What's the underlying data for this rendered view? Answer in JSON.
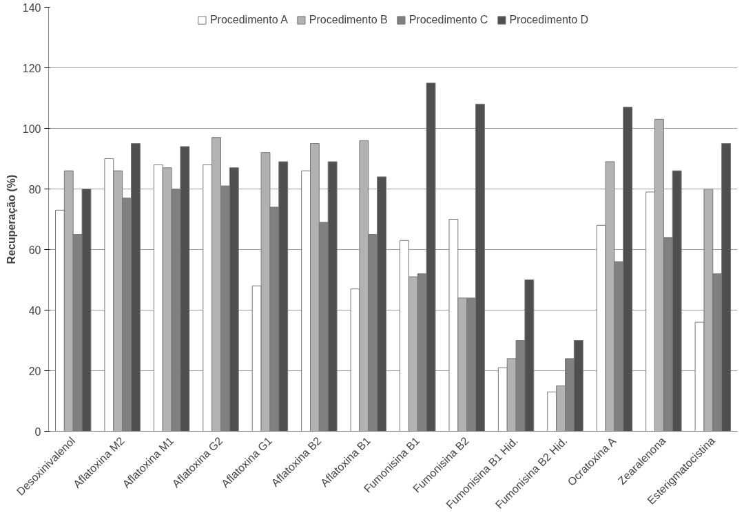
{
  "chart_data": {
    "type": "bar",
    "ylabel": "Recuperação (%)",
    "categories": [
      "Desoxinivalenol",
      "Aflatoxina M2",
      "Aflatoxina M1",
      "Aflatoxina G2",
      "Aflatoxina G1",
      "Aflatoxina B2",
      "Aflatoxina B1",
      "Fumonisina B1",
      "Fumonisina B2",
      "Fumonisina B1 Hid.",
      "Fumonisina B2 Hid.",
      "Ocratoxina A",
      "Zearalenona",
      "Esterigmatocistina"
    ],
    "series": [
      {
        "name": "Procedimento A",
        "color": "#ffffff",
        "values": [
          73,
          90,
          88,
          88,
          48,
          86,
          47,
          63,
          70,
          21,
          13,
          68,
          79,
          36
        ]
      },
      {
        "name": "Procedimento B",
        "color": "#b2b2b2",
        "values": [
          86,
          86,
          87,
          97,
          92,
          95,
          96,
          51,
          44,
          24,
          15,
          89,
          103,
          80
        ]
      },
      {
        "name": "Procedimento C",
        "color": "#808080",
        "values": [
          65,
          77,
          80,
          81,
          74,
          69,
          65,
          52,
          44,
          30,
          24,
          56,
          64,
          52
        ]
      },
      {
        "name": "Procedimento D",
        "color": "#4f4f4f",
        "values": [
          80,
          95,
          94,
          87,
          89,
          89,
          84,
          115,
          108,
          50,
          30,
          107,
          86,
          95
        ]
      }
    ],
    "ylim": [
      0,
      140
    ],
    "yticks": [
      0,
      20,
      40,
      60,
      80,
      100,
      120,
      140
    ],
    "grid": "y",
    "legend": "top"
  }
}
